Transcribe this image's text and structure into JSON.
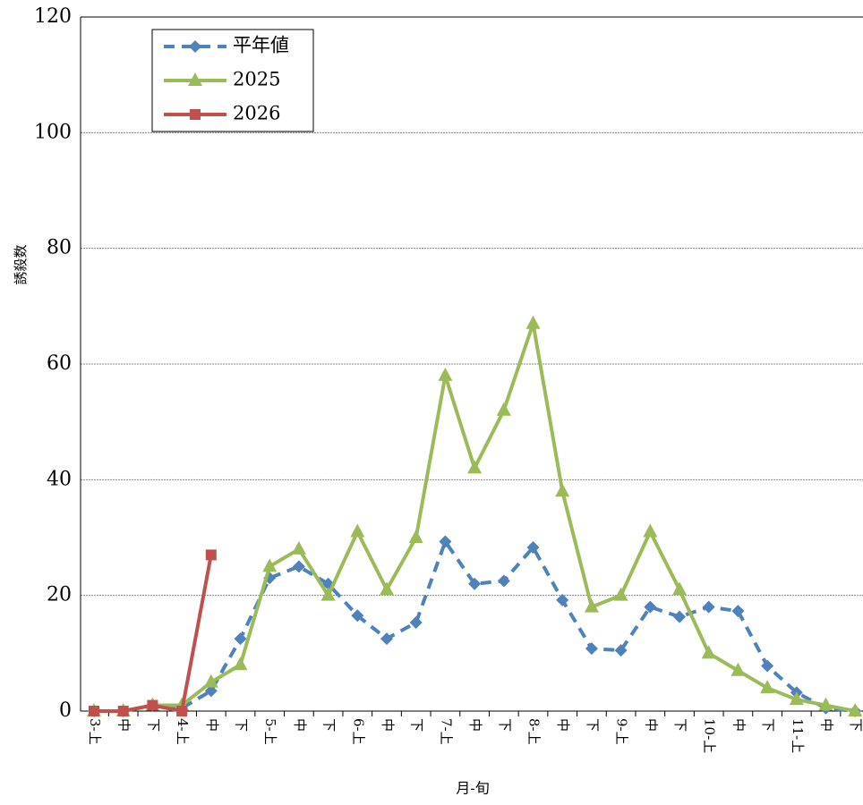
{
  "chart_data": {
    "type": "line",
    "x_label": "月-旬",
    "y_label": "誘殺数",
    "categories": [
      "3-上",
      "中",
      "下",
      "4-上",
      "中",
      "下",
      "5-上",
      "中",
      "下",
      "6-上",
      "中",
      "下",
      "7-上",
      "中",
      "下",
      "8-上",
      "中",
      "下",
      "9-上",
      "中",
      "下",
      "10-上",
      "中",
      "下",
      "11-上",
      "中",
      "下"
    ],
    "series": [
      {
        "name": "平年値",
        "color": "#4f81bd",
        "dashed": true,
        "marker": "diamond",
        "values": [
          0,
          0,
          1,
          0.5,
          3.5,
          12.5,
          23,
          25,
          22,
          16.5,
          12.5,
          15.3,
          29.3,
          22,
          22.5,
          28.3,
          19.2,
          10.8,
          10.5,
          18,
          16.3,
          18,
          17.3,
          7.8,
          3.2,
          0.5,
          0
        ]
      },
      {
        "name": "2025",
        "color": "#9bbb59",
        "dashed": false,
        "marker": "triangle",
        "values": [
          0,
          0,
          1,
          1,
          5,
          8,
          25,
          28,
          20,
          31,
          21,
          30,
          58,
          42,
          52,
          67,
          38,
          18,
          20,
          31,
          21,
          10,
          7,
          4,
          2,
          1,
          0
        ]
      },
      {
        "name": "2026",
        "color": "#c0504d",
        "dashed": false,
        "marker": "square",
        "values": [
          0,
          0,
          1,
          0,
          27,
          null,
          null,
          null,
          null,
          null,
          null,
          null,
          null,
          null,
          null,
          null,
          null,
          null,
          null,
          null,
          null,
          null,
          null,
          null,
          null,
          null,
          null
        ]
      }
    ],
    "ylim": [
      0,
      120
    ],
    "yticks": [
      0,
      20,
      40,
      60,
      80,
      100,
      120
    ],
    "grid": true,
    "legend": "upper-left"
  }
}
